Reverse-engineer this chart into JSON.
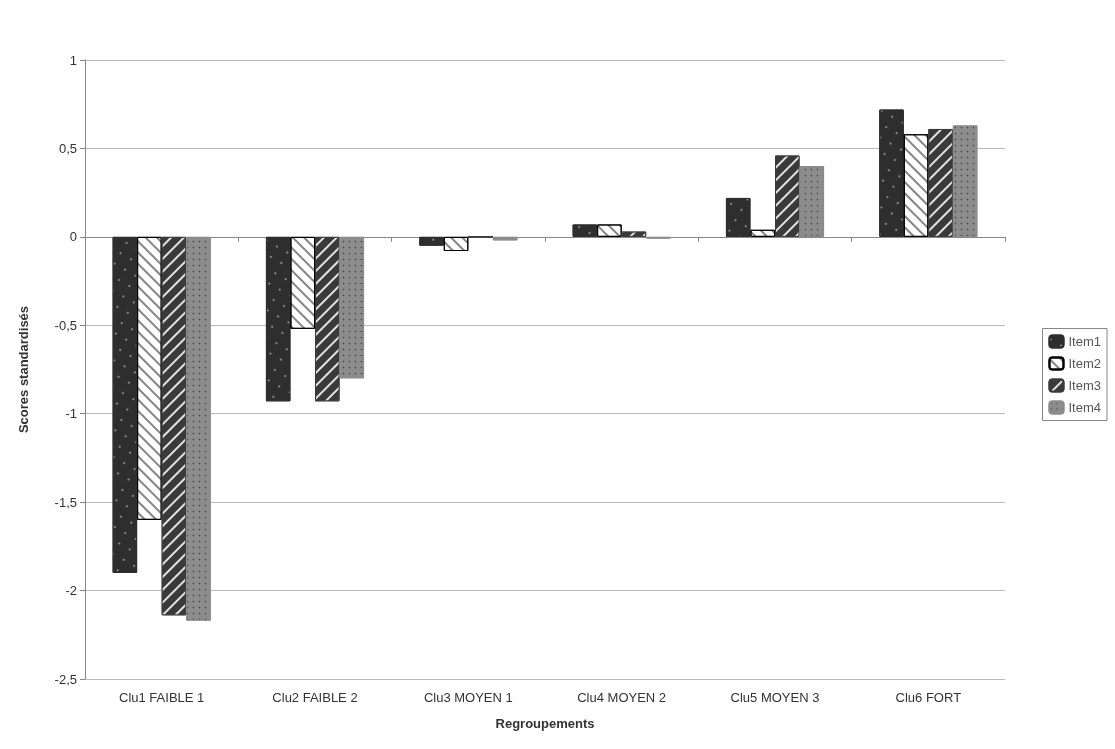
{
  "chart_data": {
    "type": "bar",
    "xlabel": "Regroupements",
    "ylabel": "Scores standardisés",
    "categories": [
      "Clu1 FAIBLE 1",
      "Clu2 FAIBLE 2",
      "Clu3 MOYEN 1",
      "Clu4 MOYEN 2",
      "Clu5 MOYEN 3",
      "Clu6 FORT"
    ],
    "series": [
      {
        "name": "Item1",
        "color": "#2e2e2e",
        "values": [
          -1.9,
          -0.93,
          -0.05,
          0.07,
          0.22,
          0.72
        ]
      },
      {
        "name": "Item2",
        "color": "#ffffff",
        "values": [
          -1.6,
          -0.52,
          -0.08,
          0.07,
          0.04,
          0.58
        ]
      },
      {
        "name": "Item3",
        "color": "#3a3a3a",
        "values": [
          -2.14,
          -0.93,
          0,
          0.03,
          0.46,
          0.61
        ]
      },
      {
        "name": "Item4",
        "color": "#8c8c8c",
        "values": [
          -2.17,
          -0.8,
          -0.02,
          -0.01,
          0.4,
          0.63
        ]
      }
    ],
    "ylim": [
      -2.5,
      1
    ],
    "yticks": [
      {
        "value": -2.5,
        "label": "-2,5"
      },
      -2,
      {
        "value": -1.5,
        "label": "-1,5"
      },
      -1,
      {
        "value": -0.5,
        "label": "-0,5"
      },
      0,
      {
        "value": 0.5,
        "label": "0,5"
      },
      1
    ],
    "grid": "y",
    "legend": "right"
  }
}
